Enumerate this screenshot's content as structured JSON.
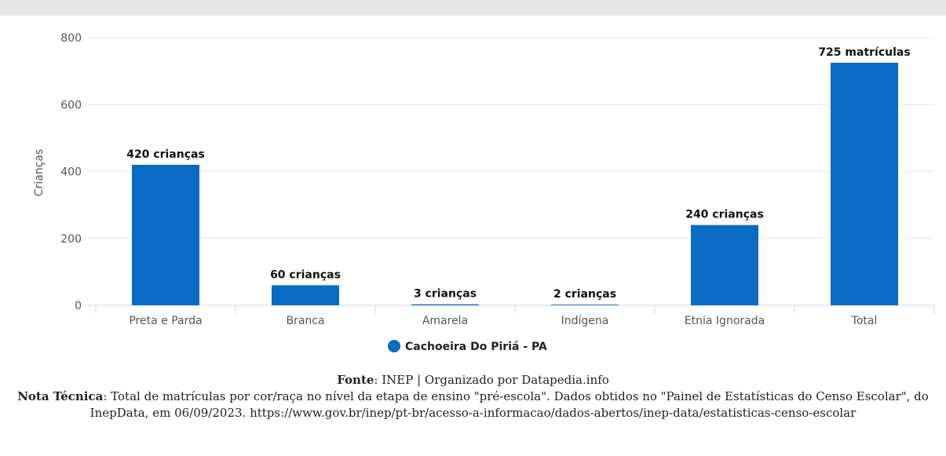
{
  "chart_data": {
    "type": "bar",
    "categories": [
      "Preta e Parda",
      "Branca",
      "Amarela",
      "Indígena",
      "Etnia Ignorada",
      "Total"
    ],
    "series": [
      {
        "name": "Cachoeira Do Piriá - PA",
        "values": [
          420,
          60,
          3,
          2,
          240,
          725
        ]
      }
    ],
    "data_labels": [
      "420 crianças",
      "60 crianças",
      "3 crianças",
      "2 crianças",
      "240 crianças",
      "725 matrículas"
    ],
    "ylabel": "Crianças",
    "xlabel": "",
    "ylim": [
      0,
      800
    ],
    "yticks": [
      0,
      200,
      400,
      600,
      800
    ],
    "grid": true,
    "legend_position": "bottom-center",
    "bar_color": "#0a6bc4"
  },
  "footer": {
    "source_label": "Fonte",
    "source_text": ": INEP | Organizado por Datapedia.info",
    "note_label": "Nota Técnica",
    "note_text": ": Total de matrículas por cor/raça no nível da etapa de ensino \"pré-escola\". Dados obtidos no \"Painel de Estatísticas do Censo Escolar\", do InepData, em 06/09/2023. https://www.gov.br/inep/pt-br/acesso-a-informacao/dados-abertos/inep-data/estatisticas-censo-escolar"
  }
}
